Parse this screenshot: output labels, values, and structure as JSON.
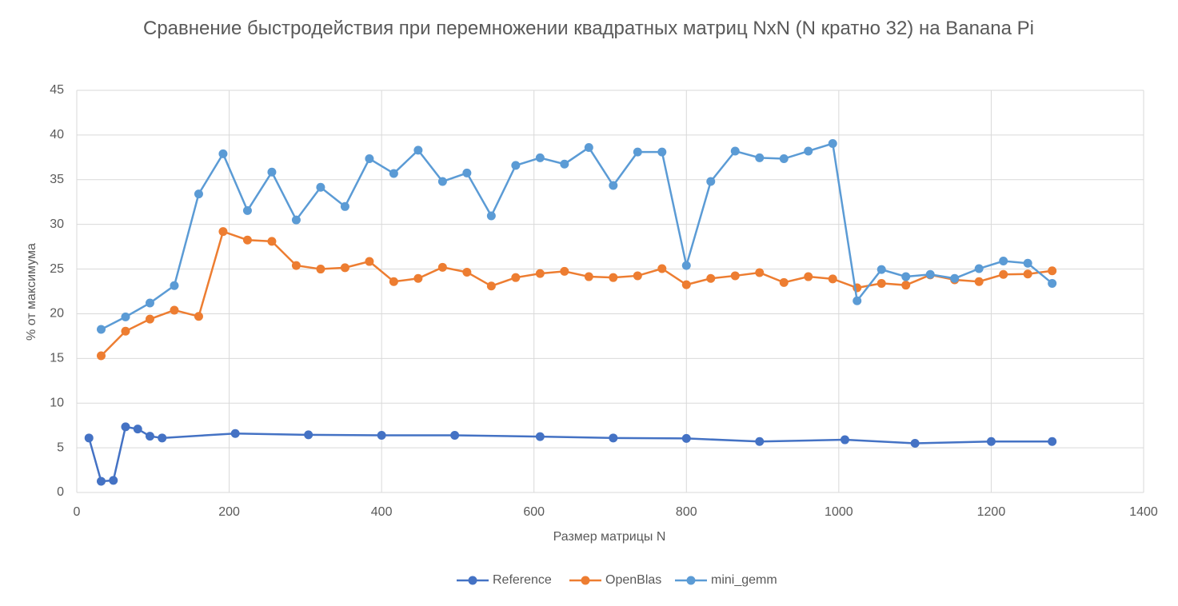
{
  "chart_data": {
    "type": "line",
    "title": "Сравнение быстродействия  при перемножении квадратных матриц NxN (N кратно 32) на Banana Pi",
    "x_label": "Размер матрицы N",
    "y_label": "% от максимума",
    "xlim": [
      0,
      1400
    ],
    "xticks": [
      0,
      200,
      400,
      600,
      800,
      1000,
      1200,
      1400
    ],
    "ylim": [
      0,
      45
    ],
    "yticks": [
      0,
      5,
      10,
      15,
      20,
      25,
      30,
      35,
      40,
      45
    ],
    "grid": true,
    "legend": "bottom",
    "series": [
      {
        "name": "Reference",
        "color": "#4472c4",
        "x": [
          16,
          32,
          48,
          64,
          80,
          96,
          112,
          208,
          304,
          400,
          496,
          608,
          704,
          800,
          896,
          1008,
          1100,
          1200,
          1280
        ],
        "values": [
          6.1,
          1.25,
          1.35,
          7.35,
          7.1,
          6.3,
          6.1,
          6.6,
          6.45,
          6.4,
          6.4,
          6.25,
          6.1,
          6.05,
          5.7,
          5.9,
          5.5,
          5.7,
          5.7
        ]
      },
      {
        "name": "OpenBlas",
        "color": "#ed7d31",
        "x": [
          32,
          64,
          96,
          128,
          160,
          192,
          224,
          256,
          288,
          320,
          352,
          384,
          416,
          448,
          480,
          512,
          544,
          576,
          608,
          640,
          672,
          704,
          736,
          768,
          800,
          832,
          864,
          896,
          928,
          960,
          992,
          1024,
          1056,
          1088,
          1120,
          1152,
          1184,
          1216,
          1248,
          1280
        ],
        "values": [
          15.3,
          18.05,
          19.4,
          20.4,
          19.7,
          29.2,
          28.25,
          28.1,
          25.4,
          25.0,
          25.15,
          25.85,
          23.6,
          23.95,
          25.2,
          24.65,
          23.1,
          24.05,
          24.5,
          24.75,
          24.15,
          24.05,
          24.25,
          25.05,
          23.25,
          23.95,
          24.25,
          24.6,
          23.5,
          24.15,
          23.9,
          22.9,
          23.4,
          23.2,
          24.35,
          23.8,
          23.6,
          24.4,
          24.45,
          24.8
        ]
      },
      {
        "name": "mini_gemm",
        "color": "#5b9bd5",
        "x": [
          32,
          64,
          96,
          128,
          160,
          192,
          224,
          256,
          288,
          320,
          352,
          384,
          416,
          448,
          480,
          512,
          544,
          576,
          608,
          640,
          672,
          704,
          736,
          768,
          800,
          832,
          864,
          896,
          928,
          960,
          992,
          1024,
          1056,
          1088,
          1120,
          1152,
          1184,
          1216,
          1248,
          1280
        ],
        "values": [
          18.25,
          19.65,
          21.2,
          23.15,
          33.4,
          37.9,
          31.55,
          35.85,
          30.5,
          34.15,
          32.0,
          37.35,
          35.7,
          38.3,
          34.8,
          35.75,
          30.95,
          36.6,
          37.45,
          36.75,
          38.6,
          34.35,
          38.1,
          38.1,
          25.4,
          34.8,
          38.2,
          37.45,
          37.35,
          38.2,
          39.05,
          21.45,
          24.95,
          24.15,
          24.4,
          23.95,
          25.05,
          25.9,
          25.65,
          23.4
        ]
      }
    ]
  }
}
